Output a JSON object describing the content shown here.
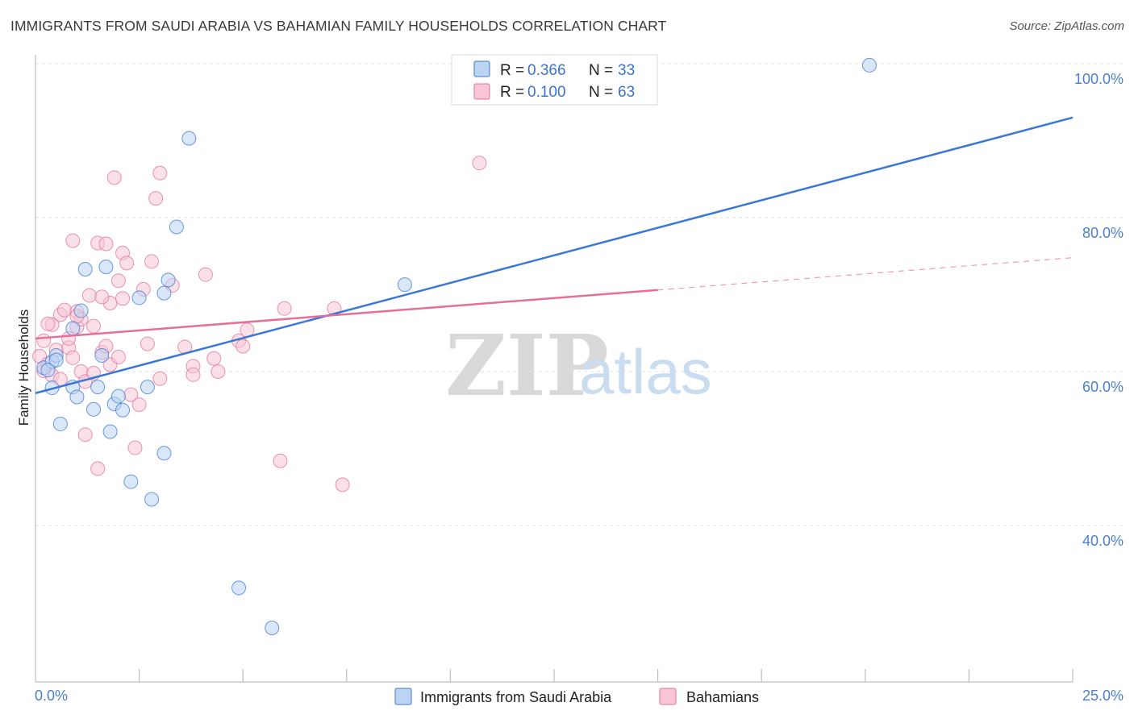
{
  "title": "IMMIGRANTS FROM SAUDI ARABIA VS BAHAMIAN FAMILY HOUSEHOLDS CORRELATION CHART",
  "source": "Source: ZipAtlas.com",
  "colors": {
    "blue": "#3a78d4",
    "blue_fill": "#bcd4f3",
    "pink": "#e46f9a",
    "pink_fill": "#f8c6d6",
    "tick": "#4a7fd0",
    "grid": "#e2e2e2"
  },
  "legend": {
    "series1": {
      "r_label": "R = ",
      "r_value": "0.366",
      "n_label": "N = ",
      "n_value": "33"
    },
    "series2": {
      "r_label": "R = ",
      "r_value": "0.100",
      "n_label": "N = ",
      "n_value": "63"
    }
  },
  "bottom_legend": {
    "series1": "Immigrants from Saudi Arabia",
    "series2": "Bahamians"
  },
  "watermark": {
    "zip": "ZIP",
    "atlas": "atlas"
  },
  "chart_data": {
    "type": "scatter",
    "title": "IMMIGRANTS FROM SAUDI ARABIA VS BAHAMIAN FAMILY HOUSEHOLDS CORRELATION CHART",
    "xlabel": "",
    "ylabel": "Family Households",
    "xlim": [
      0,
      25
    ],
    "ylim": [
      20,
      102
    ],
    "x_tick_labels": [
      "0.0%",
      "25.0%"
    ],
    "y_ticks": [
      40,
      60,
      80,
      100
    ],
    "y_tick_labels": [
      "40.0%",
      "60.0%",
      "80.0%",
      "100.0%"
    ],
    "series": [
      {
        "name": "Immigrants from Saudi Arabia",
        "r": 0.366,
        "n": 33,
        "trend": {
          "x0": 0,
          "y0": 57.2,
          "x1": 25,
          "y1": 93.0,
          "dashed_from": null
        },
        "points": [
          [
            0.2,
            60.5
          ],
          [
            0.4,
            61.3
          ],
          [
            0.5,
            62.1
          ],
          [
            0.4,
            57.9
          ],
          [
            0.6,
            53.2
          ],
          [
            0.9,
            58.0
          ],
          [
            0.9,
            65.6
          ],
          [
            1.0,
            56.7
          ],
          [
            1.1,
            67.9
          ],
          [
            1.2,
            73.3
          ],
          [
            1.4,
            55.1
          ],
          [
            1.5,
            58.0
          ],
          [
            1.6,
            62.1
          ],
          [
            1.8,
            52.2
          ],
          [
            1.9,
            55.8
          ],
          [
            2.0,
            56.8
          ],
          [
            2.1,
            55.0
          ],
          [
            2.3,
            45.7
          ],
          [
            2.5,
            69.6
          ],
          [
            2.7,
            58.0
          ],
          [
            2.8,
            43.4
          ],
          [
            3.1,
            49.4
          ],
          [
            3.1,
            70.2
          ],
          [
            3.2,
            71.9
          ],
          [
            3.7,
            90.3
          ],
          [
            3.4,
            78.8
          ],
          [
            4.9,
            31.9
          ],
          [
            5.7,
            26.7
          ],
          [
            8.9,
            71.3
          ],
          [
            20.1,
            99.8
          ],
          [
            1.7,
            73.6
          ],
          [
            0.3,
            60.2
          ],
          [
            0.5,
            61.5
          ]
        ]
      },
      {
        "name": "Bahamians",
        "r": 0.1,
        "n": 63,
        "trend": {
          "x0": 0,
          "y0": 64.3,
          "x1": 25,
          "y1": 74.8,
          "dashed_from": 15
        },
        "points": [
          [
            0.1,
            62.0
          ],
          [
            0.2,
            60.1
          ],
          [
            0.2,
            64.0
          ],
          [
            0.3,
            61.0
          ],
          [
            0.4,
            66.1
          ],
          [
            0.4,
            59.5
          ],
          [
            0.5,
            62.8
          ],
          [
            0.6,
            67.4
          ],
          [
            0.6,
            59.0
          ],
          [
            0.7,
            68.0
          ],
          [
            0.8,
            63.1
          ],
          [
            0.8,
            64.3
          ],
          [
            0.9,
            61.8
          ],
          [
            0.9,
            77.0
          ],
          [
            1.0,
            67.8
          ],
          [
            1.0,
            65.8
          ],
          [
            1.1,
            66.8
          ],
          [
            1.1,
            60.0
          ],
          [
            1.2,
            51.8
          ],
          [
            1.2,
            58.7
          ],
          [
            1.3,
            69.9
          ],
          [
            1.4,
            59.8
          ],
          [
            1.4,
            65.9
          ],
          [
            1.5,
            47.4
          ],
          [
            1.5,
            76.7
          ],
          [
            1.6,
            62.5
          ],
          [
            1.7,
            63.3
          ],
          [
            1.7,
            76.6
          ],
          [
            1.8,
            60.9
          ],
          [
            1.8,
            68.9
          ],
          [
            1.9,
            85.2
          ],
          [
            2.0,
            71.8
          ],
          [
            2.1,
            69.5
          ],
          [
            2.1,
            75.4
          ],
          [
            2.2,
            74.1
          ],
          [
            2.3,
            57.0
          ],
          [
            2.4,
            50.1
          ],
          [
            2.5,
            55.7
          ],
          [
            2.6,
            70.7
          ],
          [
            2.7,
            63.6
          ],
          [
            2.8,
            74.3
          ],
          [
            2.9,
            82.5
          ],
          [
            3.0,
            85.8
          ],
          [
            3.0,
            59.1
          ],
          [
            3.3,
            71.2
          ],
          [
            3.6,
            63.2
          ],
          [
            3.8,
            60.7
          ],
          [
            3.8,
            59.6
          ],
          [
            4.1,
            72.6
          ],
          [
            4.3,
            61.7
          ],
          [
            4.4,
            60.0
          ],
          [
            4.9,
            64.0
          ],
          [
            5.0,
            63.3
          ],
          [
            5.1,
            65.4
          ],
          [
            5.9,
            48.4
          ],
          [
            6.0,
            68.2
          ],
          [
            7.2,
            68.2
          ],
          [
            7.4,
            45.3
          ],
          [
            10.7,
            87.1
          ],
          [
            2.0,
            61.9
          ],
          [
            1.6,
            69.7
          ],
          [
            0.3,
            66.2
          ],
          [
            1.0,
            67.2
          ]
        ]
      }
    ]
  }
}
